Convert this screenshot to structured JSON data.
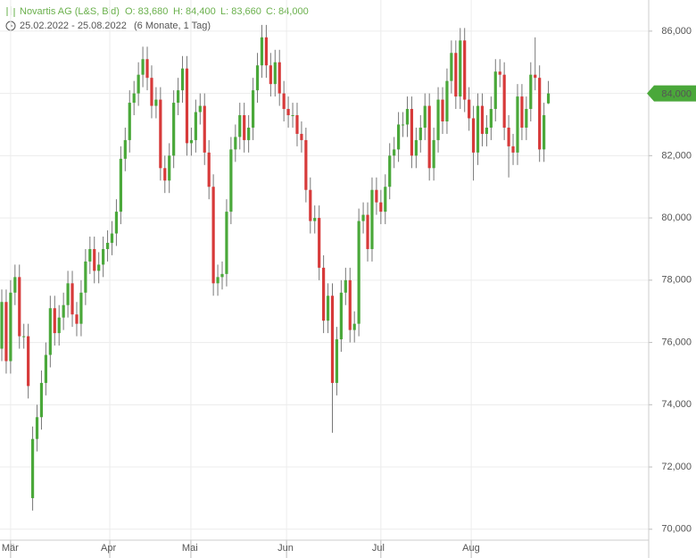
{
  "chart_data": {
    "type": "candlestick",
    "header": {
      "title": "Novartis AG (L&S, Bid)",
      "open": "O: 83,680",
      "high": "H: 84,400",
      "low": "L: 83,660",
      "close": "C: 84,000",
      "range": "25.02.2022 - 25.08.2022",
      "period": "(6 Monate, 1 Tag)"
    },
    "up_color": "#4aa83a",
    "down_color": "#d73a3a",
    "open": [
      75800,
      77300,
      75400,
      77600,
      78100,
      76200,
      76200,
      71000,
      72900,
      73600,
      74700,
      75600,
      77100,
      76300,
      76800,
      77200,
      77900,
      76900,
      76600,
      77600,
      78600,
      79000,
      78300,
      78500,
      79000,
      79200,
      79500,
      80200,
      81900,
      82500,
      83700,
      84000,
      84600,
      85100,
      84500,
      83600,
      83800,
      81600,
      81200,
      82000,
      83700,
      84100,
      84800,
      82400,
      82500,
      83400,
      83600,
      82100,
      81000,
      77900,
      78100,
      78200,
      80200,
      82200,
      82600,
      83300,
      82500,
      82900,
      84100,
      84900,
      85800,
      84900,
      84300,
      85000,
      84000,
      83500,
      83300,
      83300,
      82700,
      82500,
      80900,
      79900,
      80000,
      78400,
      76700,
      77500,
      74700,
      76100,
      77600,
      78000,
      76400,
      76600,
      79900,
      80100,
      79000,
      80900,
      80500,
      80200,
      81000,
      82000,
      82200,
      83000,
      83000,
      83500,
      82000,
      82500,
      82900,
      83600,
      81600,
      82500,
      83800,
      83100,
      84400,
      85300,
      83900,
      85700,
      83800,
      83200,
      82100,
      83600,
      82700,
      82900,
      83500,
      84700,
      84600,
      82900,
      82300,
      82100,
      83900,
      82900,
      83500,
      84600,
      84500,
      82200,
      83680
    ],
    "high": [
      77700,
      77700,
      78000,
      78500,
      78500,
      76600,
      76600,
      73300,
      74000,
      75100,
      76000,
      77500,
      77500,
      77200,
      77600,
      78300,
      78300,
      77300,
      78000,
      79000,
      79400,
      79400,
      78900,
      79400,
      79600,
      79900,
      80600,
      82300,
      82900,
      84100,
      84400,
      85000,
      85500,
      85500,
      84900,
      84200,
      84200,
      82000,
      82400,
      84100,
      84500,
      85200,
      85200,
      82900,
      83800,
      84000,
      84000,
      82500,
      81400,
      78500,
      78600,
      80600,
      82600,
      83000,
      83700,
      83700,
      83300,
      84500,
      85300,
      86200,
      86200,
      85300,
      85400,
      85400,
      84400,
      83900,
      83700,
      83700,
      83100,
      82900,
      81300,
      80400,
      80400,
      78800,
      77900,
      77900,
      76500,
      78000,
      78400,
      78400,
      77000,
      80300,
      80500,
      80500,
      81300,
      81300,
      80900,
      81400,
      82400,
      82600,
      83400,
      83400,
      83900,
      83900,
      82900,
      83300,
      84000,
      84000,
      82900,
      84200,
      84200,
      84800,
      85700,
      85700,
      86100,
      86100,
      84200,
      83600,
      84000,
      84000,
      83300,
      83900,
      85100,
      85100,
      85000,
      83300,
      82700,
      84300,
      84300,
      83900,
      85000,
      85800,
      84900,
      83700,
      84400
    ],
    "low": [
      75400,
      75000,
      75000,
      77200,
      75800,
      75800,
      74200,
      70600,
      72500,
      73200,
      74300,
      75200,
      75900,
      75900,
      76400,
      76800,
      76500,
      76200,
      76200,
      77200,
      78200,
      77900,
      77900,
      78100,
      78600,
      78800,
      79100,
      79800,
      81500,
      82100,
      83300,
      83600,
      84200,
      84100,
      83200,
      83200,
      81200,
      80800,
      80800,
      81600,
      83300,
      83700,
      82000,
      82000,
      82100,
      83000,
      81700,
      80600,
      77500,
      77500,
      77700,
      77800,
      79800,
      81800,
      82200,
      82100,
      82100,
      82500,
      83700,
      84500,
      84500,
      83900,
      83900,
      83600,
      83100,
      82900,
      82900,
      82300,
      82100,
      80500,
      79500,
      79500,
      78000,
      76300,
      76300,
      73100,
      74300,
      75700,
      77200,
      76000,
      76000,
      76200,
      79500,
      78600,
      78600,
      80100,
      79800,
      79800,
      80600,
      81600,
      81800,
      82600,
      82600,
      81600,
      81600,
      82100,
      82500,
      81200,
      81200,
      82100,
      82700,
      82700,
      84000,
      83500,
      83500,
      83400,
      82800,
      81200,
      81700,
      82300,
      82300,
      82500,
      83100,
      84200,
      82500,
      81300,
      81700,
      81700,
      82500,
      82500,
      83100,
      84100,
      81800,
      81800,
      83660
    ],
    "close": [
      77300,
      75400,
      77600,
      78100,
      76200,
      76200,
      74600,
      72900,
      73600,
      74700,
      75600,
      77100,
      76300,
      76800,
      77200,
      77900,
      76900,
      76600,
      77600,
      78600,
      79000,
      78300,
      78500,
      79000,
      79200,
      79500,
      80200,
      81900,
      82500,
      83700,
      84000,
      84600,
      85100,
      84500,
      83600,
      83800,
      81600,
      81200,
      82000,
      83700,
      84100,
      84800,
      82400,
      82500,
      83400,
      83600,
      82100,
      81000,
      77900,
      78100,
      78200,
      80200,
      82200,
      82600,
      83300,
      82500,
      82900,
      84100,
      84900,
      85800,
      84900,
      84300,
      85000,
      84000,
      83500,
      83300,
      83300,
      82700,
      82500,
      80900,
      79900,
      80000,
      78400,
      76700,
      77500,
      74700,
      76100,
      77600,
      78000,
      76400,
      76600,
      79900,
      80100,
      79000,
      80900,
      80500,
      80200,
      81000,
      82000,
      82200,
      83000,
      83000,
      83500,
      82000,
      82500,
      82900,
      83600,
      81600,
      82500,
      83800,
      83100,
      84400,
      85300,
      83900,
      85700,
      83800,
      83200,
      82100,
      83600,
      82700,
      82900,
      83500,
      84700,
      84600,
      82900,
      82300,
      82100,
      83900,
      82900,
      83500,
      84600,
      84500,
      82200,
      83300,
      84000
    ],
    "xticks": [
      {
        "value": 2,
        "label": "Mär"
      },
      {
        "value": 24.5,
        "label": "Apr"
      },
      {
        "value": 42.9,
        "label": "Mai"
      },
      {
        "value": 64.6,
        "label": "Jun"
      },
      {
        "value": 86,
        "label": "Jul"
      },
      {
        "value": 106.5,
        "label": "Aug"
      }
    ],
    "ylim": [
      69650,
      87000
    ],
    "yticks": [
      {
        "value": 70000,
        "label": "70,000"
      },
      {
        "value": 72000,
        "label": "72,000"
      },
      {
        "value": 74000,
        "label": "74,000"
      },
      {
        "value": 76000,
        "label": "76,000"
      },
      {
        "value": 78000,
        "label": "78,000"
      },
      {
        "value": 80000,
        "label": "80,000"
      },
      {
        "value": 82000,
        "label": "82,000"
      },
      {
        "value": 84000,
        "label": "84,000"
      },
      {
        "value": 86000,
        "label": "86,000"
      }
    ],
    "last_price": {
      "value": 84000,
      "label": "84,000"
    },
    "grid": true
  }
}
